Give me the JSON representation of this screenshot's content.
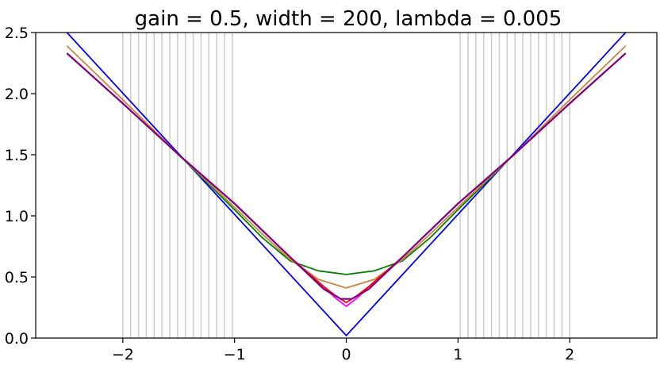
{
  "chart_data": {
    "type": "line",
    "title": "gain = 0.5, width = 200, lambda = 0.005",
    "xlabel": "",
    "ylabel": "",
    "xlim": [
      -2.78,
      2.78
    ],
    "ylim": [
      0,
      2.5
    ],
    "x_ticks": [
      {
        "value": -2,
        "label": "−2"
      },
      {
        "value": -1,
        "label": "−1"
      },
      {
        "value": 0,
        "label": "0"
      },
      {
        "value": 1,
        "label": "1"
      },
      {
        "value": 2,
        "label": "2"
      }
    ],
    "y_ticks": [
      {
        "value": 0,
        "label": "0.0"
      },
      {
        "value": 0.5,
        "label": "0.5"
      },
      {
        "value": 1,
        "label": "1.0"
      },
      {
        "value": 1.5,
        "label": "1.5"
      },
      {
        "value": 2,
        "label": "2.0"
      },
      {
        "value": 2.5,
        "label": "2.5"
      }
    ],
    "vertical_lines": {
      "color": "#cccccc",
      "x": [
        -2.0,
        -1.93,
        -1.86,
        -1.79,
        -1.72,
        -1.65,
        -1.58,
        -1.51,
        -1.44,
        -1.37,
        -1.3,
        -1.23,
        -1.16,
        -1.09,
        -1.02,
        1.02,
        1.09,
        1.16,
        1.23,
        1.3,
        1.37,
        1.44,
        1.51,
        1.58,
        1.65,
        1.72,
        1.79,
        1.86,
        1.93,
        2.0
      ]
    },
    "grid": false,
    "legend": "none",
    "series": [
      {
        "color": "#0000ff",
        "x": [
          -2.5,
          0,
          2.5
        ],
        "y": [
          2.5,
          0.02,
          2.5
        ]
      },
      {
        "color": "#008000",
        "x": [
          -2.5,
          -2.0,
          -1.5,
          -1.0,
          -0.75,
          -0.5,
          -0.25,
          0,
          0.25,
          0.5,
          0.75,
          1.0,
          1.5,
          2.0,
          2.5
        ],
        "y": [
          2.33,
          1.92,
          1.5,
          1.05,
          0.82,
          0.63,
          0.55,
          0.52,
          0.55,
          0.63,
          0.82,
          1.05,
          1.5,
          1.92,
          2.33
        ]
      },
      {
        "color": "#cd853f",
        "x": [
          -2.5,
          -2.0,
          -1.5,
          -1.0,
          -0.75,
          -0.5,
          -0.25,
          0,
          0.25,
          0.5,
          0.75,
          1.0,
          1.5,
          2.0,
          2.5
        ],
        "y": [
          2.39,
          1.95,
          1.5,
          1.07,
          0.85,
          0.64,
          0.48,
          0.41,
          0.48,
          0.64,
          0.85,
          1.07,
          1.5,
          1.95,
          2.39
        ]
      },
      {
        "color": "#ff00ff",
        "x": [
          -2.5,
          -2.0,
          -1.5,
          -1.0,
          -0.5,
          -0.2,
          -0.1,
          0,
          0.1,
          0.2,
          0.5,
          1.0,
          1.5,
          2.0,
          2.5
        ],
        "y": [
          2.33,
          1.92,
          1.5,
          1.1,
          0.66,
          0.42,
          0.33,
          0.26,
          0.33,
          0.42,
          0.66,
          1.1,
          1.5,
          1.92,
          2.33
        ]
      },
      {
        "color": "#ff0000",
        "x": [
          -2.5,
          -2.0,
          -1.5,
          -1.0,
          -0.5,
          -0.2,
          -0.1,
          0,
          0.1,
          0.2,
          0.5,
          1.0,
          1.5,
          2.0,
          2.5
        ],
        "y": [
          2.33,
          1.92,
          1.5,
          1.1,
          0.66,
          0.42,
          0.35,
          0.29,
          0.35,
          0.42,
          0.66,
          1.1,
          1.5,
          1.92,
          2.33
        ]
      },
      {
        "color": "#800080",
        "x": [
          -2.5,
          -2.0,
          -1.5,
          -1.0,
          -0.5,
          -0.2,
          -0.05,
          0.05,
          0.2,
          0.5,
          1.0,
          1.5,
          2.0,
          2.5
        ],
        "y": [
          2.33,
          1.92,
          1.5,
          1.1,
          0.66,
          0.4,
          0.32,
          0.32,
          0.4,
          0.66,
          1.1,
          1.5,
          1.92,
          2.33
        ]
      }
    ]
  }
}
